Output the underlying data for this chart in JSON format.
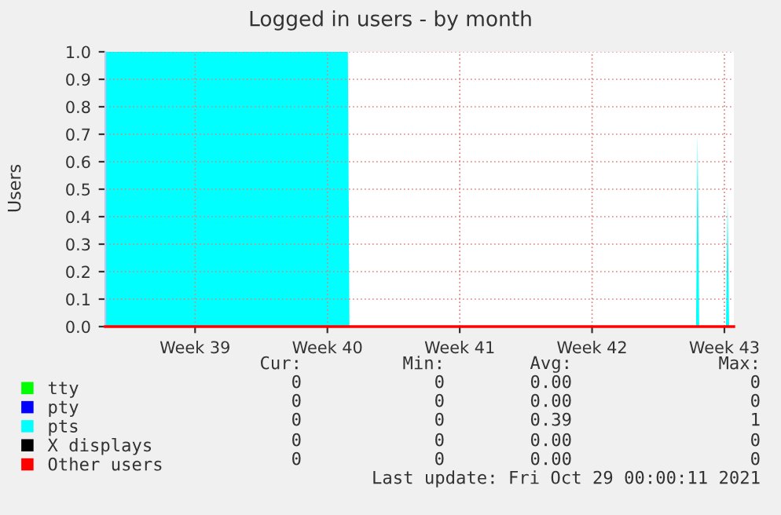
{
  "chart_data": {
    "type": "line",
    "title": "Logged in users - by month",
    "ylabel": "Users",
    "xlim": [
      "2021-09-25T18:00",
      "2021-10-29T00:00"
    ],
    "xticks": [
      {
        "value": "2021-09-30T12:00",
        "label": "Week 39"
      },
      {
        "value": "2021-10-07T12:00",
        "label": "Week 40"
      },
      {
        "value": "2021-10-14T12:00",
        "label": "Week 41"
      },
      {
        "value": "2021-10-21T12:00",
        "label": "Week 42"
      },
      {
        "value": "2021-10-28T12:00",
        "label": "Week 43"
      }
    ],
    "ylim": [
      0,
      1
    ],
    "yticks": [
      {
        "value": 0,
        "label": "0.0"
      },
      {
        "value": 0.1,
        "label": "0.1"
      },
      {
        "value": 0.2,
        "label": "0.2"
      },
      {
        "value": 0.3,
        "label": "0.3"
      },
      {
        "value": 0.4,
        "label": "0.4"
      },
      {
        "value": 0.5,
        "label": "0.5"
      },
      {
        "value": 0.6,
        "label": "0.6"
      },
      {
        "value": 0.7,
        "label": "0.7"
      },
      {
        "value": 0.8,
        "label": "0.8"
      },
      {
        "value": 0.9,
        "label": "0.9"
      },
      {
        "value": 1,
        "label": "1.0"
      }
    ],
    "grid": true,
    "legend": "bottom left",
    "series": [
      {
        "name": "tty",
        "color": "#00ff00"
      },
      {
        "name": "pty",
        "color": "#0000ff"
      },
      {
        "name": "pts",
        "color": "#00ffff",
        "type": "area",
        "x": [
          "2021-09-25T18:00",
          "2021-10-08T14:00",
          "2021-10-08T16:00",
          "2021-10-27T00:00",
          "2021-10-27T02:00",
          "2021-10-27T04:00",
          "2021-10-28T14:00",
          "2021-10-28T16:00",
          "2021-10-28T18:00"
        ],
        "values": [
          1,
          1,
          0,
          0,
          0.7,
          0,
          0,
          0.46,
          0
        ]
      },
      {
        "name": "X displays",
        "color": "#000000"
      },
      {
        "name": "Other users",
        "color": "#ff0000",
        "x": [
          "2021-09-25T18:00",
          "2021-10-29T00:00"
        ],
        "values": [
          0,
          0
        ]
      }
    ],
    "annotations": [
      "Cur:",
      "Min:",
      "Avg:",
      "Max:",
      "0",
      "0",
      "0.00",
      "0",
      "0",
      "0",
      "0.00",
      "0",
      "0",
      "0",
      "0.39",
      "1",
      "0",
      "0",
      "0.00",
      "0",
      "0",
      "0",
      "0.00",
      "0",
      "Last update: Fri Oct 29 00:00:11 2021"
    ]
  }
}
